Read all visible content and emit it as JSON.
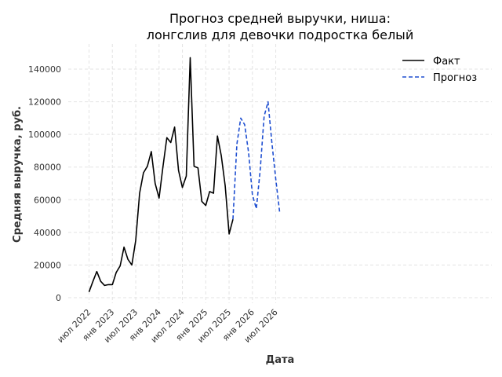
{
  "chart_data": {
    "type": "line",
    "title_lines": [
      "Прогноз средней выручки, ниша:",
      "лонгслив для девочки подростка белый"
    ],
    "xlabel": "Дата",
    "ylabel": "Средняя выручка, руб.",
    "x_ticks": [
      "июл 2022",
      "янв 2023",
      "июл 2023",
      "янв 2024",
      "июл 2024",
      "янв 2025",
      "июл 2025",
      "янв 2026",
      "июл 2026"
    ],
    "y_ticks": [
      0,
      20000,
      40000,
      60000,
      80000,
      100000,
      120000,
      140000
    ],
    "ylim": [
      -7500,
      155000
    ],
    "grid": true,
    "legend_position": "top-right",
    "series": [
      {
        "name": "Факт",
        "color": "#000000",
        "style": "solid",
        "x": [
          "2022-07",
          "2022-08",
          "2022-09",
          "2022-10",
          "2022-11",
          "2022-12",
          "2023-01",
          "2023-02",
          "2023-03",
          "2023-04",
          "2023-05",
          "2023-06",
          "2023-07",
          "2023-08",
          "2023-09",
          "2023-10",
          "2023-11",
          "2023-12",
          "2024-01",
          "2024-02",
          "2024-03",
          "2024-04",
          "2024-05",
          "2024-06",
          "2024-07",
          "2024-08",
          "2024-09",
          "2024-10",
          "2024-11",
          "2024-12",
          "2025-01",
          "2025-02",
          "2025-03",
          "2025-04",
          "2025-05",
          "2025-06",
          "2025-07",
          "2025-08"
        ],
        "values": [
          3500,
          10000,
          16000,
          10000,
          7500,
          8000,
          8000,
          15500,
          19500,
          31000,
          23500,
          20000,
          35000,
          64000,
          76500,
          80500,
          89500,
          70000,
          61000,
          80000,
          98000,
          95000,
          104500,
          78000,
          67500,
          74500,
          147000,
          80500,
          79500,
          59000,
          56500,
          65000,
          64000,
          99000,
          87000,
          68500,
          39000,
          48000
        ]
      },
      {
        "name": "Прогноз",
        "color": "#1f4fd1",
        "style": "dashed",
        "x": [
          "2025-08",
          "2025-09",
          "2025-10",
          "2025-11",
          "2025-12",
          "2026-01",
          "2026-02",
          "2026-03",
          "2026-04",
          "2026-05",
          "2026-06",
          "2026-07",
          "2026-08"
        ],
        "values": [
          48000,
          94000,
          110000,
          106000,
          89000,
          63000,
          54500,
          78000,
          111000,
          120000,
          95000,
          72500,
          52500
        ]
      }
    ]
  }
}
